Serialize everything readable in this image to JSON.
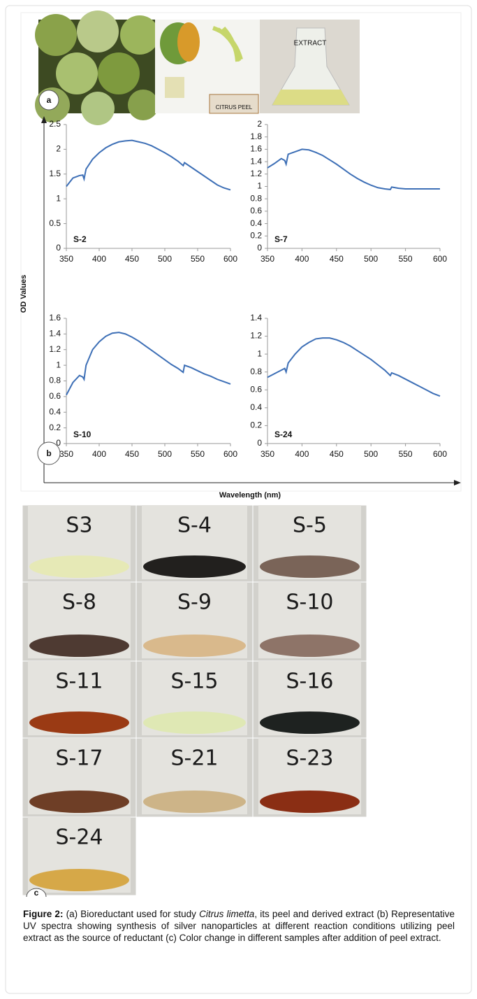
{
  "panel_a": {
    "label": "a",
    "photo_texts": [
      "CITRUS PEEL",
      "EXTRACT"
    ]
  },
  "panel_b": {
    "label": "b",
    "y_label": "OD Values",
    "x_label": "Wavelength (nm)"
  },
  "chart_data": [
    {
      "type": "line",
      "label": "S-2",
      "color": "#3d6fb6",
      "x": [
        350,
        360,
        370,
        375,
        377,
        380,
        390,
        400,
        410,
        420,
        430,
        440,
        450,
        460,
        470,
        480,
        490,
        500,
        510,
        520,
        528,
        530,
        540,
        550,
        560,
        570,
        580,
        590,
        600
      ],
      "values": [
        1.25,
        1.42,
        1.47,
        1.48,
        1.4,
        1.6,
        1.8,
        1.93,
        2.03,
        2.1,
        2.15,
        2.17,
        2.18,
        2.15,
        2.12,
        2.07,
        2.0,
        1.93,
        1.85,
        1.76,
        1.67,
        1.73,
        1.64,
        1.55,
        1.46,
        1.37,
        1.28,
        1.22,
        1.18
      ],
      "xlim": [
        350,
        600
      ],
      "xticks": [
        350,
        400,
        450,
        500,
        550,
        600
      ],
      "ylim": [
        0,
        2.5
      ],
      "yticks": [
        0,
        0.5,
        1,
        1.5,
        2,
        2.5
      ]
    },
    {
      "type": "line",
      "label": "S-7",
      "color": "#3d6fb6",
      "x": [
        350,
        360,
        370,
        375,
        377,
        380,
        390,
        400,
        410,
        420,
        430,
        440,
        450,
        460,
        470,
        480,
        490,
        500,
        510,
        520,
        528,
        530,
        540,
        550,
        560,
        570,
        580,
        590,
        600
      ],
      "values": [
        1.3,
        1.37,
        1.45,
        1.42,
        1.36,
        1.52,
        1.56,
        1.6,
        1.59,
        1.55,
        1.5,
        1.43,
        1.36,
        1.28,
        1.2,
        1.13,
        1.07,
        1.02,
        0.98,
        0.96,
        0.95,
        0.99,
        0.97,
        0.96,
        0.96,
        0.96,
        0.96,
        0.96,
        0.96
      ],
      "xlim": [
        350,
        600
      ],
      "xticks": [
        350,
        400,
        450,
        500,
        550,
        600
      ],
      "ylim": [
        0,
        2
      ],
      "yticks": [
        0,
        0.2,
        0.4,
        0.6,
        0.8,
        1,
        1.2,
        1.4,
        1.6,
        1.8,
        2
      ]
    },
    {
      "type": "line",
      "label": "S-10",
      "color": "#3d6fb6",
      "x": [
        350,
        360,
        370,
        375,
        377,
        380,
        390,
        400,
        410,
        420,
        430,
        440,
        450,
        460,
        470,
        480,
        490,
        500,
        510,
        520,
        528,
        530,
        540,
        550,
        560,
        570,
        580,
        590,
        600
      ],
      "values": [
        0.62,
        0.78,
        0.87,
        0.85,
        0.82,
        1.0,
        1.2,
        1.3,
        1.37,
        1.41,
        1.42,
        1.4,
        1.36,
        1.31,
        1.25,
        1.19,
        1.13,
        1.07,
        1.01,
        0.96,
        0.91,
        1.0,
        0.97,
        0.93,
        0.89,
        0.86,
        0.82,
        0.79,
        0.76
      ],
      "xlim": [
        350,
        600
      ],
      "xticks": [
        350,
        400,
        450,
        500,
        550,
        600
      ],
      "ylim": [
        0,
        1.6
      ],
      "yticks": [
        0,
        0.2,
        0.4,
        0.6,
        0.8,
        1,
        1.2,
        1.4,
        1.6
      ]
    },
    {
      "type": "line",
      "label": "S-24",
      "color": "#3d6fb6",
      "x": [
        350,
        360,
        370,
        375,
        377,
        380,
        390,
        400,
        410,
        420,
        430,
        440,
        450,
        460,
        470,
        480,
        490,
        500,
        510,
        520,
        528,
        530,
        540,
        550,
        560,
        570,
        580,
        590,
        600
      ],
      "values": [
        0.74,
        0.78,
        0.82,
        0.84,
        0.8,
        0.9,
        1.0,
        1.08,
        1.13,
        1.17,
        1.18,
        1.18,
        1.16,
        1.13,
        1.09,
        1.04,
        0.99,
        0.94,
        0.88,
        0.82,
        0.76,
        0.79,
        0.76,
        0.72,
        0.68,
        0.64,
        0.6,
        0.56,
        0.53
      ],
      "xlim": [
        350,
        600
      ],
      "xticks": [
        350,
        400,
        450,
        500,
        550,
        600
      ],
      "ylim": [
        0,
        1.4
      ],
      "yticks": [
        0,
        0.2,
        0.4,
        0.6,
        0.8,
        1,
        1.2,
        1.4
      ]
    }
  ],
  "panel_c": {
    "label": "c",
    "tiles": [
      {
        "label": "S3",
        "liquid": "#e6e9b6"
      },
      {
        "label": "S-4",
        "liquid": "#22201e"
      },
      {
        "label": "S-5",
        "liquid": "#7a6458"
      },
      {
        "label": "S-8",
        "liquid": "#4e3a32"
      },
      {
        "label": "S-9",
        "liquid": "#d9b98c"
      },
      {
        "label": "S-10",
        "liquid": "#8e7468"
      },
      {
        "label": "S-11",
        "liquid": "#9a3a14"
      },
      {
        "label": "S-15",
        "liquid": "#dfe8b4"
      },
      {
        "label": "S-16",
        "liquid": "#1e2220"
      },
      {
        "label": "S-17",
        "liquid": "#6e3e26"
      },
      {
        "label": "S-21",
        "liquid": "#cdb488"
      },
      {
        "label": "S-23",
        "liquid": "#8a2e14"
      },
      {
        "label": "S-24",
        "liquid": "#d6a848"
      }
    ]
  },
  "caption": {
    "label": "Figure 2:",
    "text_before": "(a) Bioreductant used for study",
    "species": "Citrus limetta",
    "text_after": ", its peel and derived extract (b) Representative UV spectra showing synthesis of silver nanoparticles at different reaction conditions utilizing peel extract as the source of reductant (c) Color change in different samples after addition of peel extract."
  }
}
